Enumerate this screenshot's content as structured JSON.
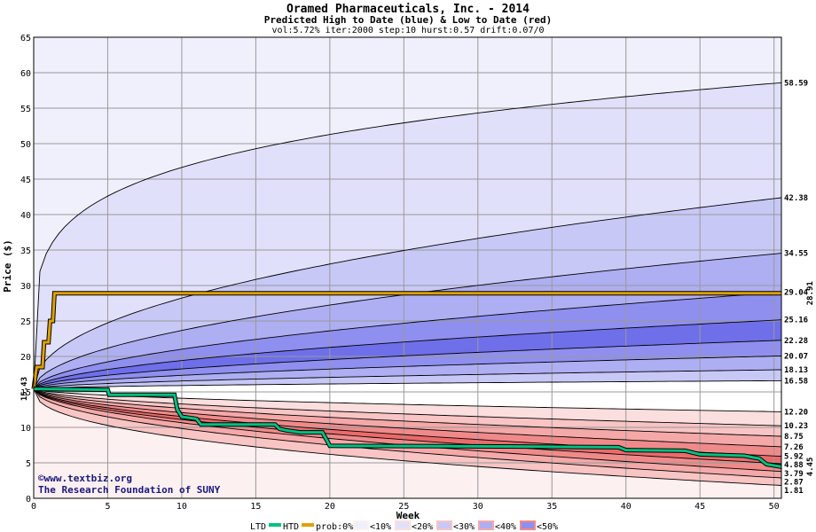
{
  "chart_data": {
    "type": "area",
    "title": "Oramed Pharmaceuticals, Inc. - 2014",
    "subtitle": "Predicted High to Date (blue) &  Low to Date (red)",
    "params": "vol:5.72% iter:2000 step:10 hurst:0.57 drift:0.07/0",
    "xlabel": "Week",
    "ylabel": "Price ($)",
    "xlim": [
      0,
      50.5
    ],
    "ylim": [
      0,
      65
    ],
    "x_ticks": [
      0,
      5,
      10,
      15,
      20,
      25,
      30,
      35,
      40,
      45,
      50
    ],
    "y_ticks": [
      0,
      5,
      10,
      15,
      20,
      25,
      30,
      35,
      40,
      45,
      50,
      55,
      60,
      65
    ],
    "start_price": 15.43,
    "start_label": "15.43",
    "grid": true,
    "colors": {
      "blue_outer": "#f0f0fd",
      "blue_10": "#e0e0fa",
      "blue_20": "#c8c8f7",
      "blue_30": "#aeaef3",
      "blue_40": "#8f8fef",
      "blue_50": "#6f6fea",
      "red_outer": "#fdf0f0",
      "red_10": "#fbdede",
      "red_20": "#f8c4c4",
      "red_30": "#f5a8a8",
      "red_40": "#f08a8a",
      "red_50": "#ec6a6a",
      "ltd_line": "#00c080",
      "htd_line": "#e0a000"
    },
    "high_bands": [
      {
        "end": 58.59,
        "label": "58.59"
      },
      {
        "end": 42.38,
        "label": "42.38"
      },
      {
        "end": 34.55,
        "label": "34.55"
      },
      {
        "end": 29.04,
        "label": "29.04"
      },
      {
        "end": 25.16,
        "label": "25.16"
      },
      {
        "end": 22.28,
        "label": "22.28"
      },
      {
        "end": 20.07,
        "label": "20.07"
      },
      {
        "end": 18.13,
        "label": "18.13"
      },
      {
        "end": 16.58,
        "label": "16.58"
      }
    ],
    "low_bands": [
      {
        "end": 12.2,
        "label": "12.20"
      },
      {
        "end": 10.23,
        "label": "10.23"
      },
      {
        "end": 8.75,
        "label": "8.75"
      },
      {
        "end": 7.26,
        "label": "7.26"
      },
      {
        "end": 5.92,
        "label": "5.92"
      },
      {
        "end": 4.88,
        "label": "4.88"
      },
      {
        "end": 3.79,
        "label": "3.79"
      },
      {
        "end": 2.87,
        "label": "2.87"
      },
      {
        "end": 1.81,
        "label": "1.81"
      }
    ],
    "htd_series": {
      "name": "HTD",
      "end_label": "28.91",
      "points": [
        [
          0,
          15.43
        ],
        [
          0.2,
          18.5
        ],
        [
          0.6,
          18.5
        ],
        [
          0.7,
          22
        ],
        [
          1.0,
          22
        ],
        [
          1.1,
          25
        ],
        [
          1.3,
          25
        ],
        [
          1.4,
          28.91
        ],
        [
          50.5,
          28.91
        ]
      ]
    },
    "ltd_series": {
      "name": "LTD",
      "end_label": "4.45",
      "points": [
        [
          0,
          15.43
        ],
        [
          5,
          15.3
        ],
        [
          5.1,
          14.6
        ],
        [
          9.5,
          14.6
        ],
        [
          9.7,
          12.5
        ],
        [
          10,
          11.5
        ],
        [
          11,
          11.2
        ],
        [
          11.3,
          10.4
        ],
        [
          16.3,
          10.4
        ],
        [
          16.6,
          9.8
        ],
        [
          17,
          9.6
        ],
        [
          18,
          9.3
        ],
        [
          19.5,
          9.3
        ],
        [
          20,
          7.4
        ],
        [
          33,
          7.3
        ],
        [
          39.5,
          7.2
        ],
        [
          40,
          6.8
        ],
        [
          44,
          6.7
        ],
        [
          45,
          6.2
        ],
        [
          48,
          6.0
        ],
        [
          49,
          5.6
        ],
        [
          49.5,
          4.8
        ],
        [
          50.5,
          4.45
        ]
      ]
    },
    "legend": {
      "ltd": "LTD",
      "htd": "HTD",
      "prob_items": [
        "prob:0%",
        "<10%",
        "<20%",
        "<30%",
        "<40%",
        "<50%"
      ]
    },
    "credits": [
      "©www.textbiz.org",
      "The Research Foundation of SUNY"
    ]
  }
}
